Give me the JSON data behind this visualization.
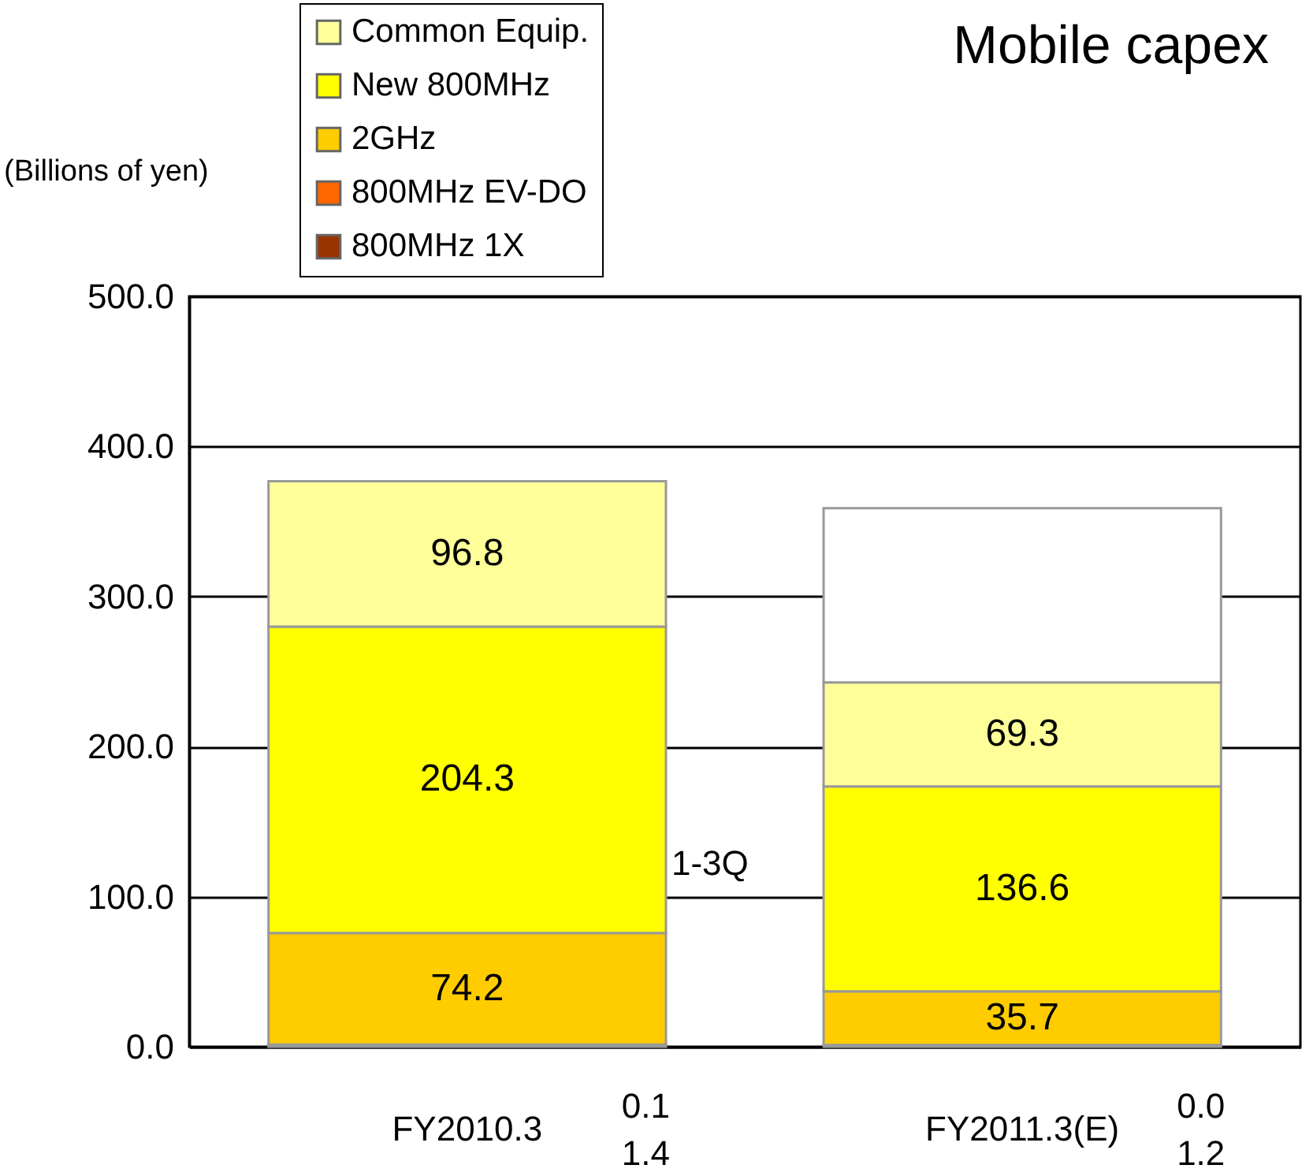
{
  "chart_data": {
    "type": "bar",
    "title": "Mobile capex",
    "ylabel": "(Billions of yen)",
    "categories": [
      "FY2010.3",
      "FY2011.3(E)"
    ],
    "stacked": true,
    "series": [
      {
        "name": "800MHz 1X",
        "color": "#993300",
        "values": [
          1.4,
          1.2
        ],
        "value_labels": [
          "1.4",
          "1.2"
        ]
      },
      {
        "name": "800MHz EV-DO",
        "color": "#ff6600",
        "values": [
          0.1,
          0.0
        ],
        "value_labels": [
          "0.1",
          "0.0"
        ]
      },
      {
        "name": "2GHz",
        "color": "#ffcc00",
        "values": [
          74.2,
          35.7
        ],
        "value_labels": [
          "74.2",
          "35.7"
        ]
      },
      {
        "name": "New 800MHz",
        "color": "#ffff00",
        "values": [
          204.3,
          136.6
        ],
        "value_labels": [
          "204.3",
          "136.6"
        ]
      },
      {
        "name": "Common Equip.",
        "color": "#ffff99",
        "values": [
          96.8,
          69.3
        ],
        "value_labels": [
          "96.8",
          "69.3"
        ]
      },
      {
        "color": "#ffffff",
        "values": [
          null,
          116
        ]
      }
    ],
    "ylim": [
      0,
      500
    ],
    "yticks": [
      {
        "value": 0,
        "label": "0.0"
      },
      {
        "value": 100,
        "label": "100.0"
      },
      {
        "value": 200,
        "label": "200.0"
      },
      {
        "value": 300,
        "label": "300.0"
      },
      {
        "value": 400,
        "label": "400.0"
      },
      {
        "value": 500,
        "label": "500.0"
      }
    ],
    "grid": "y",
    "legend": "top left",
    "annotations": [
      "1-3Q"
    ]
  }
}
